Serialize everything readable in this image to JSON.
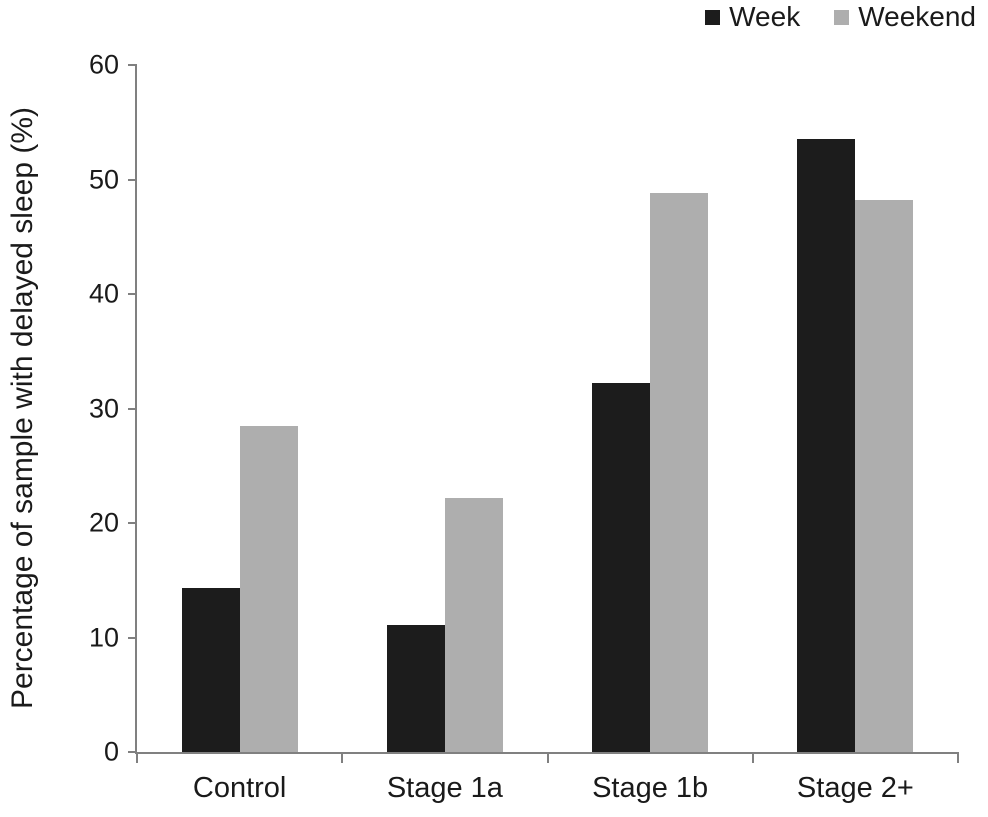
{
  "chart_data": {
    "type": "bar",
    "title": "",
    "categories": [
      "Control",
      "Stage 1a",
      "Stage 1b",
      "Stage 2+"
    ],
    "series": [
      {
        "name": "Week",
        "color": "#1c1c1c",
        "values": [
          14.3,
          11.1,
          32.2,
          53.5
        ]
      },
      {
        "name": "Weekend",
        "color": "#aeaeae",
        "values": [
          28.5,
          22.2,
          48.8,
          48.2
        ]
      }
    ],
    "xlabel": "",
    "ylabel": "Percentage of sample with delayed sleep (%)",
    "ylim": [
      0,
      60
    ],
    "yticks": [
      0,
      10,
      20,
      30,
      40,
      50,
      60
    ],
    "grid": false,
    "legend_position": "top-right",
    "axis_color": "#808080",
    "text_color": "#1a1a1a",
    "background_color": "#ffffff"
  }
}
